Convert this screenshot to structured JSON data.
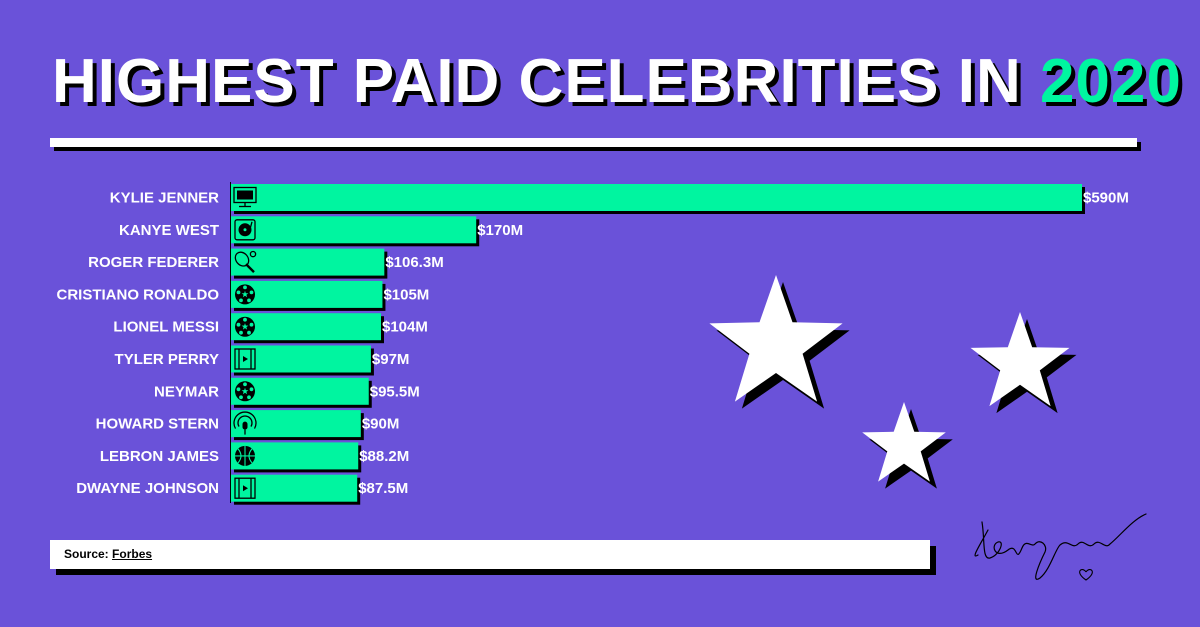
{
  "title": {
    "main": "HIGHEST PAID CELEBRITIES IN",
    "year": "2020"
  },
  "colors": {
    "background": "#6a52d9",
    "bar": "#00f5a0",
    "shadow": "#000000",
    "text": "#ffffff"
  },
  "chart_data": {
    "type": "bar",
    "orientation": "horizontal",
    "categories": [
      "KYLIE JENNER",
      "KANYE WEST",
      "ROGER FEDERER",
      "CRISTIANO RONALDO",
      "LIONEL MESSI",
      "TYLER PERRY",
      "NEYMAR",
      "HOWARD STERN",
      "LEBRON JAMES",
      "DWAYNE JOHNSON"
    ],
    "values": [
      590,
      170,
      106.3,
      105,
      104,
      97,
      95.5,
      90,
      88.2,
      87.5
    ],
    "value_labels": [
      "$590M",
      "$170M",
      "$106.3M",
      "$105M",
      "$104M",
      "$97M",
      "$95.5M",
      "$90M",
      "$88.2M",
      "$87.5M"
    ],
    "icons": [
      "monitor-icon",
      "turntable-icon",
      "tennis-icon",
      "soccer-ball-icon",
      "soccer-ball-icon",
      "film-icon",
      "soccer-ball-icon",
      "podcast-icon",
      "basketball-icon",
      "film-icon"
    ],
    "unit": "USD millions",
    "xlim": [
      0,
      590
    ],
    "grid": false,
    "legend": "none"
  },
  "source": {
    "label": "Source:",
    "link": "Forbes"
  }
}
